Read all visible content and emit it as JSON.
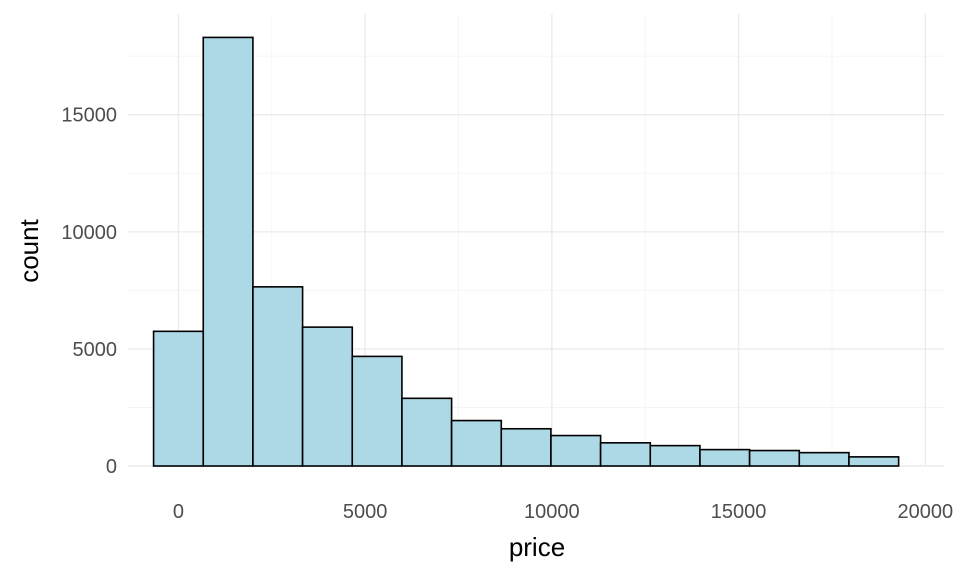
{
  "chart_data": {
    "type": "bar",
    "subtype": "histogram",
    "title": "",
    "xlabel": "price",
    "ylabel": "count",
    "x_ticks": [
      0,
      5000,
      10000,
      15000,
      20000
    ],
    "y_ticks": [
      0,
      5000,
      10000,
      15000
    ],
    "xlim": [
      -1350,
      20500
    ],
    "ylim": [
      0,
      19300
    ],
    "grid": true,
    "legend": "none",
    "bar_fill": "#add8e6",
    "bar_outline": "#000000",
    "bins": [
      {
        "x_start": -665,
        "x_end": 665,
        "count": 5750
      },
      {
        "x_start": 665,
        "x_end": 1995,
        "count": 18300
      },
      {
        "x_start": 1995,
        "x_end": 3325,
        "count": 7650
      },
      {
        "x_start": 3325,
        "x_end": 4655,
        "count": 5930
      },
      {
        "x_start": 4655,
        "x_end": 5985,
        "count": 4680
      },
      {
        "x_start": 5985,
        "x_end": 7315,
        "count": 2890
      },
      {
        "x_start": 7315,
        "x_end": 8645,
        "count": 1940
      },
      {
        "x_start": 8645,
        "x_end": 9975,
        "count": 1590
      },
      {
        "x_start": 9975,
        "x_end": 11305,
        "count": 1300
      },
      {
        "x_start": 11305,
        "x_end": 12635,
        "count": 990
      },
      {
        "x_start": 12635,
        "x_end": 13965,
        "count": 870
      },
      {
        "x_start": 13965,
        "x_end": 15295,
        "count": 700
      },
      {
        "x_start": 15295,
        "x_end": 16625,
        "count": 660
      },
      {
        "x_start": 16625,
        "x_end": 17955,
        "count": 570
      },
      {
        "x_start": 17955,
        "x_end": 19285,
        "count": 390
      }
    ]
  }
}
